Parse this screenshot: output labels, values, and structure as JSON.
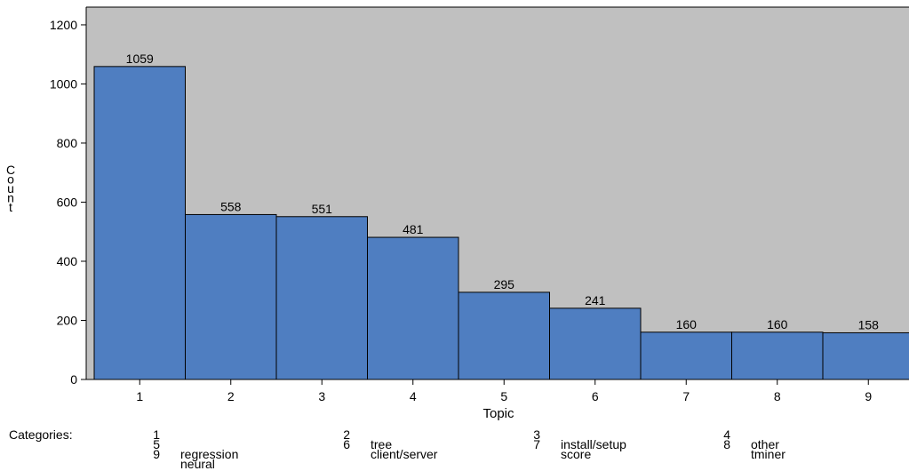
{
  "chart_data": {
    "type": "bar",
    "title": "",
    "xlabel": "Topic",
    "ylabel": "Count",
    "categories": [
      "1",
      "2",
      "3",
      "4",
      "5",
      "6",
      "7",
      "8",
      "9"
    ],
    "values": [
      1059,
      558,
      551,
      481,
      295,
      241,
      160,
      160,
      158
    ],
    "data_labels": [
      "1059",
      "558",
      "551",
      "481",
      "295",
      "241",
      "160",
      "160",
      "158"
    ],
    "ylim": [
      0,
      1260
    ],
    "yticks": [
      0,
      200,
      400,
      600,
      800,
      1000,
      1200
    ],
    "grid": false,
    "bar_color": "#4f7ec1",
    "plot_background": "#c0c0c0"
  },
  "legend": {
    "title": "Categories:",
    "items": [
      {
        "num": "1",
        "label": ""
      },
      {
        "num": "2",
        "label": "tree"
      },
      {
        "num": "3",
        "label": "install/setup"
      },
      {
        "num": "4",
        "label": "other"
      },
      {
        "num": "5",
        "label": "regression"
      },
      {
        "num": "6",
        "label": "client/server"
      },
      {
        "num": "7",
        "label": "score"
      },
      {
        "num": "8",
        "label": "tminer"
      },
      {
        "num": "9",
        "label": "neural"
      }
    ]
  }
}
